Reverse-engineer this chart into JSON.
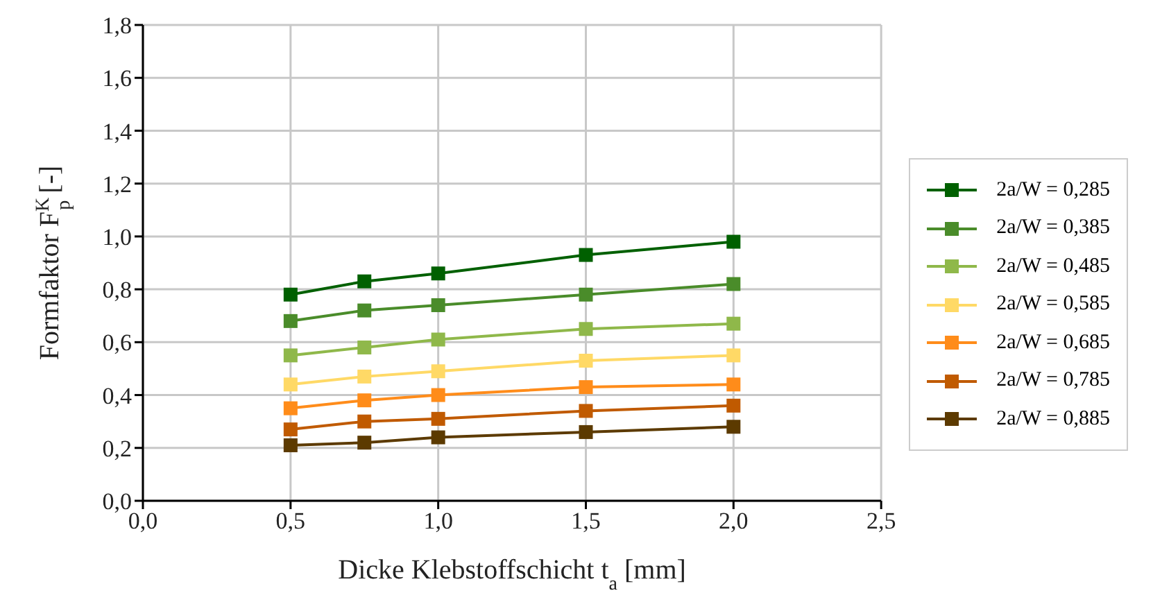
{
  "chart_data": {
    "type": "line",
    "xlabel": "Dicke Klebstoffschicht t$_{a}$ [mm]",
    "ylabel": "Formfaktor F$^{K}$$_{p}$ [-]",
    "x": [
      0.5,
      0.75,
      1.0,
      1.5,
      2.0
    ],
    "series": [
      {
        "name": "2a/W = 0,285",
        "color": "#006000",
        "values": [
          0.78,
          0.83,
          0.86,
          0.93,
          0.98
        ]
      },
      {
        "name": "2a/W = 0,385",
        "color": "#4a8c2a",
        "values": [
          0.68,
          0.72,
          0.74,
          0.78,
          0.82
        ]
      },
      {
        "name": "2a/W = 0,485",
        "color": "#8fb84a",
        "values": [
          0.55,
          0.58,
          0.61,
          0.65,
          0.67
        ]
      },
      {
        "name": "2a/W = 0,585",
        "color": "#ffd966",
        "values": [
          0.44,
          0.47,
          0.49,
          0.53,
          0.55
        ]
      },
      {
        "name": "2a/W = 0,685",
        "color": "#ff8c1a",
        "values": [
          0.35,
          0.38,
          0.4,
          0.43,
          0.44
        ]
      },
      {
        "name": "2a/W = 0,785",
        "color": "#c05a00",
        "values": [
          0.27,
          0.3,
          0.31,
          0.34,
          0.36
        ]
      },
      {
        "name": "2a/W = 0,885",
        "color": "#5c3a00",
        "values": [
          0.21,
          0.22,
          0.24,
          0.26,
          0.28
        ]
      }
    ],
    "xlim": [
      0,
      2.5
    ],
    "xticks": [
      {
        "value": 0,
        "label": "0,0"
      },
      {
        "value": 0.5,
        "label": "0,5"
      },
      {
        "value": 1,
        "label": "1,0"
      },
      {
        "value": 1.5,
        "label": "1,5"
      },
      {
        "value": 2,
        "label": "2,0"
      },
      {
        "value": 2.5,
        "label": "2,5"
      }
    ],
    "ylim": [
      0,
      1.8
    ],
    "yticks": [
      {
        "value": 0,
        "label": "0,0"
      },
      {
        "value": 0.2,
        "label": "0,2"
      },
      {
        "value": 0.4,
        "label": "0,4"
      },
      {
        "value": 0.6,
        "label": "0,6"
      },
      {
        "value": 0.8,
        "label": "0,8"
      },
      {
        "value": 1,
        "label": "1,0"
      },
      {
        "value": 1.2,
        "label": "1,2"
      },
      {
        "value": 1.4,
        "label": "1,4"
      },
      {
        "value": 1.6,
        "label": "1,6"
      },
      {
        "value": 1.8,
        "label": "1,8"
      }
    ],
    "grid": true,
    "legend": "right",
    "marker": "square",
    "line_style": "solid"
  }
}
